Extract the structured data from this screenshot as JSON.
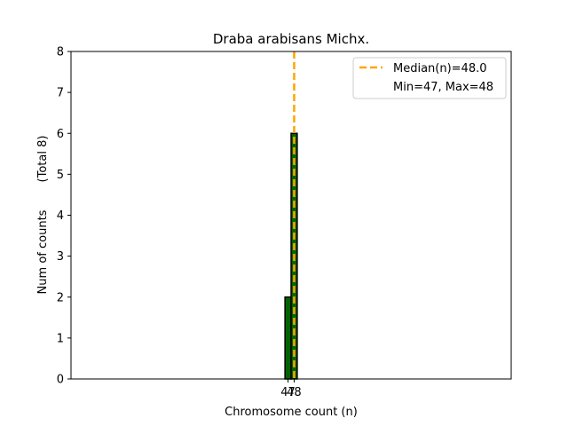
{
  "chart_data": {
    "type": "bar",
    "title": "Draba arabisans Michx.",
    "xlabel": "Chromosome count (n)",
    "ylabel_main": "Num of counts",
    "ylabel_total": "(Total 8)",
    "categories": [
      47,
      48
    ],
    "values": [
      2,
      6
    ],
    "xlim": [
      11.4,
      83.6
    ],
    "ylim": [
      0,
      8
    ],
    "yticks": [
      0,
      1,
      2,
      3,
      4,
      5,
      6,
      7,
      8
    ],
    "xtick_labels": [
      "47",
      "48"
    ],
    "median": 48.0,
    "bar_color": "#006400",
    "bar_edge_color": "#000000",
    "median_line_color": "#ffa500",
    "legend": {
      "placement": "top-right",
      "entries": [
        "Median(n)=48.0",
        "Min=47, Max=48"
      ]
    },
    "grid": false
  }
}
